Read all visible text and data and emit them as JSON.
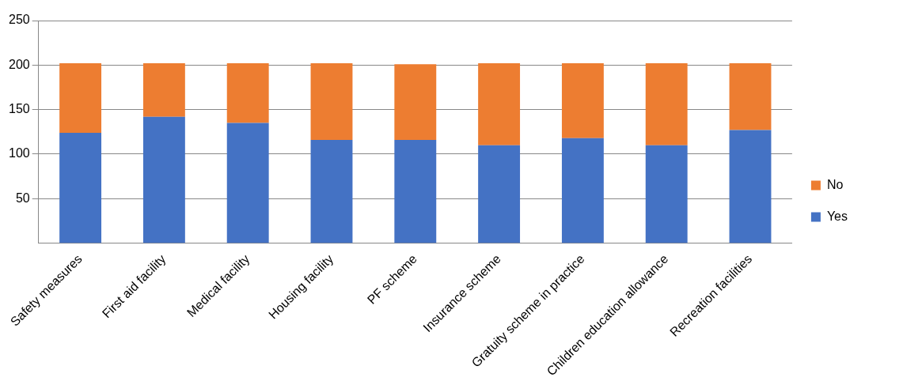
{
  "chart_data": {
    "type": "bar",
    "stacked": true,
    "categories": [
      "Safety measures",
      "First aid facility",
      "Medical facility",
      "Housing facility",
      "PF scheme",
      "Insurance scheme",
      "Gratuity scheme in practice",
      "Children education allowance",
      "Recreation facilities"
    ],
    "series": [
      {
        "name": "Yes",
        "color": "#4472c4",
        "values": [
          124,
          142,
          135,
          116,
          116,
          110,
          118,
          110,
          127
        ]
      },
      {
        "name": "No",
        "color": "#ed7d31",
        "values": [
          78,
          60,
          67,
          86,
          85,
          92,
          84,
          92,
          75
        ]
      }
    ],
    "ylim": [
      0,
      250
    ],
    "yticks": [
      50,
      100,
      150,
      200,
      250
    ],
    "grid": "y",
    "legend": "right"
  }
}
